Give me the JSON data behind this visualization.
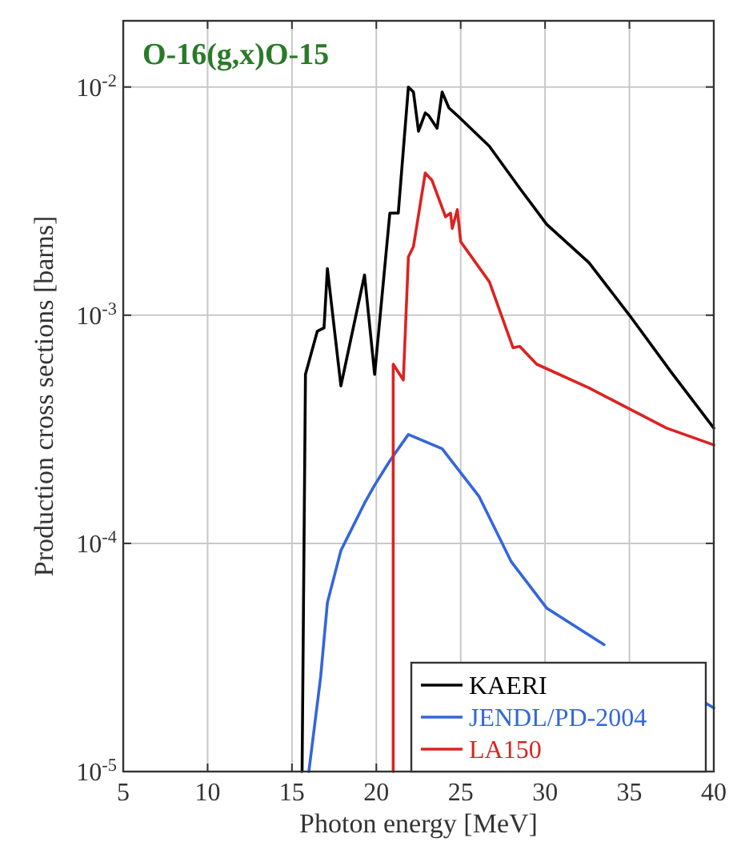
{
  "chart_data": {
    "type": "line",
    "title": "O-16(g,x)O-15",
    "xlabel": "Photon energy [MeV]",
    "ylabel": "Production cross sections [barns]",
    "xlim": [
      5,
      40
    ],
    "xticks": [
      5,
      10,
      15,
      20,
      25,
      30,
      35,
      40
    ],
    "ylim": [
      1e-05,
      0.0195
    ],
    "log": "y",
    "yticks": [
      {
        "value": 1e-05,
        "label": "10$^{-5}$"
      },
      {
        "value": 0.0001,
        "label": "10$^{-4}$"
      },
      {
        "value": 0.001,
        "label": "10$^{-3}$"
      },
      {
        "value": 0.01,
        "label": "10$^{-2}$"
      }
    ],
    "grid": true,
    "legend": "bottom right",
    "line_style": "solid",
    "marker": "none",
    "series": [
      {
        "name": "KAERI",
        "color": "#000000",
        "x": [
          15.6,
          15.8,
          16.5,
          16.9,
          17.1,
          17.9,
          19.3,
          19.9,
          20.8,
          21.3,
          21.9,
          22.2,
          22.5,
          22.9,
          23.1,
          23.6,
          23.9,
          24.3,
          24.8,
          26.7,
          28.5,
          30.1,
          32.6,
          35.0,
          37.5,
          40
        ],
        "values": [
          1e-05,
          0.00055,
          0.00085,
          0.00088,
          0.0016,
          0.00049,
          0.0015,
          0.00055,
          0.0028,
          0.0028,
          0.01,
          0.0095,
          0.0064,
          0.0077,
          0.0075,
          0.0066,
          0.0095,
          0.0081,
          0.0075,
          0.0055,
          0.0036,
          0.0025,
          0.0017,
          0.001,
          0.00056,
          0.00032
        ]
      },
      {
        "name": "JENDL/PD-2004",
        "color": "#3366dd",
        "x": [
          16.0,
          16.7,
          17.1,
          17.9,
          19.3,
          19.9,
          20.8,
          21.9,
          23.9,
          26.1,
          28.0,
          30.1,
          33.5,
          36.5,
          39.5,
          40
        ],
        "values": [
          1e-05,
          2.6e-05,
          5.5e-05,
          9.3e-05,
          0.00015,
          0.00018,
          0.00023,
          0.0003,
          0.00026,
          0.00016,
          8.3e-05,
          5.2e-05,
          3.6e-05,
          null,
          2e-05,
          1.9e-05
        ]
      },
      {
        "name": "LA150",
        "color": "#dd2222",
        "x": [
          21.0,
          21.0,
          21.6,
          21.9,
          22.2,
          22.9,
          23.3,
          24.1,
          24.4,
          24.5,
          24.8,
          25.0,
          26.7,
          28.1,
          28.5,
          29.5,
          32.6,
          37.2,
          40
        ],
        "values": [
          1e-05,
          0.00061,
          0.00052,
          0.0018,
          0.002,
          0.0042,
          0.0039,
          0.0027,
          0.0028,
          0.0024,
          0.0029,
          0.0021,
          0.0014,
          0.00072,
          0.00073,
          0.00061,
          0.00048,
          0.00032,
          0.00027
        ]
      }
    ]
  }
}
